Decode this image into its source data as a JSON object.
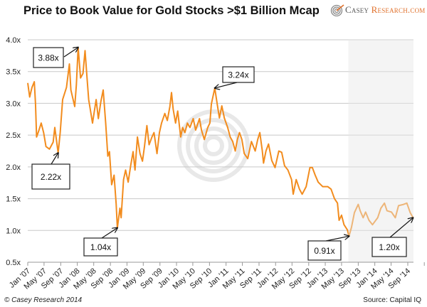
{
  "header": {
    "title": "Price to Book Value for Gold Stocks >$1 Billion Mcap",
    "logo": {
      "brand_a": "Casey",
      "brand_b": "Research.com",
      "icon": "casey-research-spiral-logo"
    }
  },
  "footer": {
    "copyright": "© Casey Research 2014",
    "source": "Source: Capital IQ"
  },
  "colors": {
    "line": "#F28C1E",
    "shade": "#E6E6E6",
    "grid": "#C8C8C8",
    "watermark": "#D8D8D8"
  },
  "chart_data": {
    "type": "line",
    "title": "Price to Book Value for Gold Stocks >$1 Billion Mcap",
    "xlabel": "",
    "ylabel": "",
    "ylim": [
      0.5,
      4.0
    ],
    "xlim": [
      "2007-01-01",
      "2014-10-12"
    ],
    "grid": true,
    "y_ticks": [
      "0.5x",
      "1.0x",
      "1.5x",
      "2.0x",
      "2.5x",
      "3.0x",
      "3.5x",
      "4.0x"
    ],
    "y_tick_values": [
      0.5,
      1.0,
      1.5,
      2.0,
      2.5,
      3.0,
      3.5,
      4.0
    ],
    "x_ticks": [
      "Jan '07",
      "May '07",
      "Sep '07",
      "Jan '08",
      "May '08",
      "Sep '08",
      "Jan '09",
      "May '09",
      "Sep '09",
      "Jan '10",
      "May '10",
      "Sep '10",
      "Jan '11",
      "May '11",
      "Sep '11",
      "Jan '12",
      "May '12",
      "Sep '12",
      "Jan '13",
      "May '13",
      "Sep '13",
      "Jan '14",
      "May '14",
      "Sep '14"
    ],
    "x_tick_dates": [
      "2007-01-01",
      "2007-05-01",
      "2007-09-01",
      "2008-01-01",
      "2008-05-01",
      "2008-09-01",
      "2009-01-01",
      "2009-05-01",
      "2009-09-01",
      "2010-01-01",
      "2010-05-01",
      "2010-09-01",
      "2011-01-01",
      "2011-05-01",
      "2011-09-01",
      "2012-01-01",
      "2012-05-01",
      "2012-09-01",
      "2013-01-01",
      "2013-05-01",
      "2013-09-01",
      "2014-01-01",
      "2014-05-01",
      "2014-09-01"
    ],
    "shaded_region": {
      "from": "2013-06-20",
      "to": "2014-10-12"
    },
    "series": [
      {
        "x": [
          "2007-01-01",
          "2007-01-15",
          "2007-02-01",
          "2007-02-18",
          "2007-02-27",
          "2007-03-07",
          "2007-03-25",
          "2007-04-10",
          "2007-04-28",
          "2007-05-15",
          "2007-06-10",
          "2007-07-07",
          "2007-07-19",
          "2007-08-13",
          "2007-08-28",
          "2007-09-15",
          "2007-10-13",
          "2007-11-04",
          "2007-11-15",
          "2007-12-13",
          "2007-12-25",
          "2008-01-07",
          "2008-01-25",
          "2008-02-12",
          "2008-02-27",
          "2008-03-13",
          "2008-03-25",
          "2008-04-22",
          "2008-05-19",
          "2008-06-04",
          "2008-06-22",
          "2008-07-10",
          "2008-07-28",
          "2008-08-13",
          "2008-08-25",
          "2008-09-10",
          "2008-09-28",
          "2008-10-13",
          "2008-10-22",
          "2008-11-10",
          "2008-11-19",
          "2008-12-07",
          "2008-12-22",
          "2009-01-10",
          "2009-01-28",
          "2009-02-15",
          "2009-03-01",
          "2009-03-19",
          "2009-04-07",
          "2009-04-25",
          "2009-05-10",
          "2009-05-28",
          "2009-06-13",
          "2009-07-04",
          "2009-07-19",
          "2009-08-10",
          "2009-08-28",
          "2009-09-13",
          "2009-10-07",
          "2009-10-25",
          "2009-11-13",
          "2009-11-25",
          "2009-12-07",
          "2009-12-25",
          "2010-01-10",
          "2010-02-01",
          "2010-02-15",
          "2010-03-04",
          "2010-03-22",
          "2010-04-10",
          "2010-05-04",
          "2010-05-22",
          "2010-06-19",
          "2010-07-04",
          "2010-07-25",
          "2010-08-19",
          "2010-09-04",
          "2010-09-15",
          "2010-10-10",
          "2010-10-28",
          "2010-11-13",
          "2010-12-01",
          "2010-12-19",
          "2011-01-13",
          "2011-02-01",
          "2011-02-19",
          "2011-03-10",
          "2011-03-25",
          "2011-04-10",
          "2011-04-28",
          "2011-05-15",
          "2011-06-10",
          "2011-07-07",
          "2011-08-04",
          "2011-08-22",
          "2011-09-07",
          "2011-09-25",
          "2011-10-04",
          "2011-10-22",
          "2011-11-10",
          "2011-12-04",
          "2011-12-28",
          "2012-01-25",
          "2012-02-15",
          "2012-03-07",
          "2012-04-01",
          "2012-04-28",
          "2012-05-10",
          "2012-06-01",
          "2012-06-25",
          "2012-07-15",
          "2012-08-13",
          "2012-09-10",
          "2012-09-28",
          "2012-10-19",
          "2012-11-10",
          "2012-12-13",
          "2013-01-19",
          "2013-02-13",
          "2013-03-10",
          "2013-04-01",
          "2013-04-13",
          "2013-05-01",
          "2013-05-19",
          "2013-06-13",
          "2013-06-25",
          "2013-07-13",
          "2013-08-04",
          "2013-09-01",
          "2013-09-15",
          "2013-10-07",
          "2013-10-25",
          "2013-11-19",
          "2013-12-15",
          "2014-01-22",
          "2014-02-15",
          "2014-03-13",
          "2014-04-01",
          "2014-05-04",
          "2014-06-01",
          "2014-06-25",
          "2014-08-01",
          "2014-08-25",
          "2014-09-19",
          "2014-10-10"
        ],
        "y": [
          3.32,
          3.1,
          3.25,
          3.34,
          2.99,
          2.47,
          2.58,
          2.69,
          2.54,
          2.32,
          2.28,
          2.39,
          2.62,
          2.22,
          2.54,
          3.06,
          3.25,
          3.62,
          3.21,
          2.95,
          3.29,
          3.88,
          3.4,
          3.47,
          3.83,
          3.4,
          3.06,
          2.69,
          3.06,
          2.76,
          3.02,
          3.21,
          2.69,
          2.17,
          2.24,
          1.72,
          1.87,
          1.42,
          1.04,
          1.35,
          1.2,
          1.8,
          1.95,
          1.76,
          2.02,
          2.24,
          1.95,
          2.47,
          2.21,
          2.09,
          2.32,
          2.65,
          2.35,
          2.47,
          2.54,
          2.21,
          2.54,
          2.69,
          2.84,
          2.73,
          2.95,
          3.17,
          2.91,
          2.69,
          2.88,
          2.47,
          2.62,
          2.54,
          2.69,
          2.62,
          2.76,
          2.58,
          2.76,
          2.58,
          2.43,
          2.62,
          2.69,
          2.99,
          3.24,
          2.99,
          2.77,
          2.96,
          2.77,
          2.62,
          2.47,
          2.4,
          2.25,
          2.43,
          2.54,
          2.43,
          2.21,
          2.13,
          2.4,
          2.25,
          2.43,
          2.54,
          2.25,
          2.06,
          2.25,
          2.36,
          2.1,
          1.99,
          2.25,
          2.23,
          2.02,
          1.95,
          1.8,
          1.57,
          1.8,
          1.65,
          1.57,
          1.69,
          1.99,
          1.99,
          1.87,
          1.76,
          1.69,
          1.69,
          1.65,
          1.5,
          1.43,
          1.16,
          1.24,
          1.09,
          1.01,
          0.91,
          1.05,
          1.28,
          1.41,
          1.31,
          1.2,
          1.29,
          1.16,
          1.09,
          1.2,
          1.35,
          1.43,
          1.31,
          1.29,
          1.2,
          1.39,
          1.41,
          1.43,
          1.28,
          1.2
        ]
      }
    ],
    "annotations": [
      {
        "text": "3.88x",
        "date": "2008-01-07",
        "value": 3.88
      },
      {
        "text": "2.22x",
        "date": "2007-08-13",
        "value": 2.22
      },
      {
        "text": "1.04x",
        "date": "2008-10-22",
        "value": 1.04
      },
      {
        "text": "3.24x",
        "date": "2010-10-10",
        "value": 3.24
      },
      {
        "text": "0.91x",
        "date": "2013-06-25",
        "value": 0.91
      },
      {
        "text": "1.20x",
        "date": "2014-10-10",
        "value": 1.2
      }
    ]
  }
}
